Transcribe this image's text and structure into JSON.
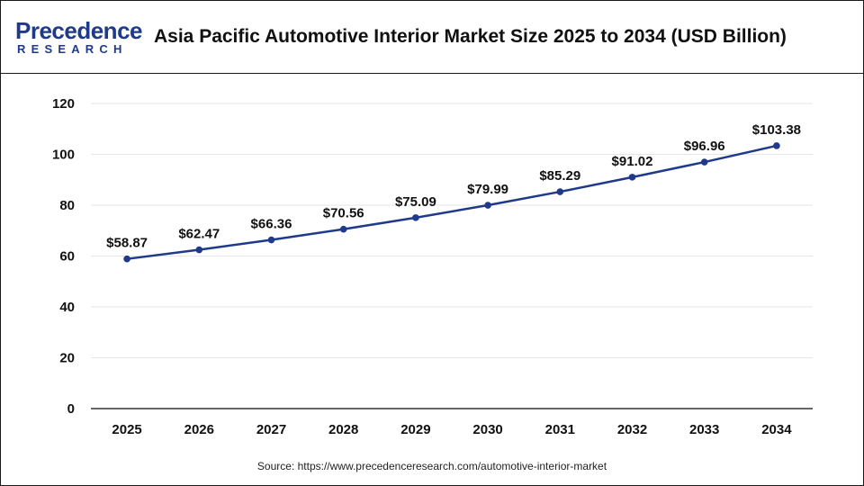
{
  "header": {
    "logo_word": "Precedence",
    "logo_sub": "RESEARCH",
    "title": "Asia Pacific Automotive Interior Market Size 2025 to 2034 (USD Billion)"
  },
  "source": "Source: https://www.precedenceresearch.com/automotive-interior-market",
  "colors": {
    "line": "#1f3a8a",
    "marker": "#1f3a8a",
    "grid": "#e6e6e6",
    "axis": "#333333",
    "logo": "#1f3a8a"
  },
  "chart_data": {
    "type": "line",
    "title": "Asia Pacific Automotive Interior Market Size 2025 to 2034 (USD Billion)",
    "xlabel": "",
    "ylabel": "",
    "categories": [
      "2025",
      "2026",
      "2027",
      "2028",
      "2029",
      "2030",
      "2031",
      "2032",
      "2033",
      "2034"
    ],
    "series": [
      {
        "values": [
          58.87,
          62.47,
          66.36,
          70.56,
          75.09,
          79.99,
          85.29,
          91.02,
          96.96,
          103.38
        ],
        "labels": [
          "$58.87",
          "$62.47",
          "$66.36",
          "$70.56",
          "$75.09",
          "$79.99",
          "$85.29",
          "$91.02",
          "$96.96",
          "$103.38"
        ]
      }
    ],
    "ylim": [
      0,
      120
    ],
    "yticks": [
      0,
      20,
      40,
      60,
      80,
      100,
      120
    ],
    "grid": true,
    "legend": "none"
  }
}
